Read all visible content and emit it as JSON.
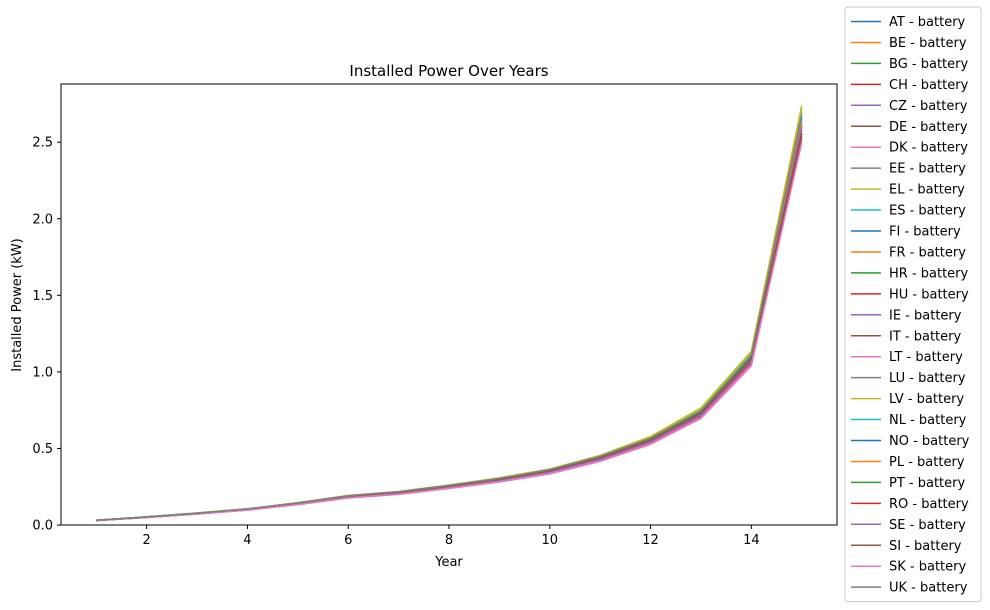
{
  "chart_data": {
    "type": "line",
    "title": "Installed Power Over Years",
    "xlabel": "Year",
    "ylabel": "Installed Power (kW)",
    "xlim": [
      0.3,
      15.7
    ],
    "ylim": [
      0,
      2.88
    ],
    "x_ticks": [
      2,
      4,
      6,
      8,
      10,
      12,
      14
    ],
    "y_ticks": [
      0.0,
      0.5,
      1.0,
      1.5,
      2.0,
      2.5
    ],
    "x_tick_labels": [
      "2",
      "4",
      "6",
      "8",
      "10",
      "12",
      "14"
    ],
    "y_tick_labels": [
      "0.0",
      "0.5",
      "1.0",
      "1.5",
      "2.0",
      "2.5"
    ],
    "grid": false,
    "legend_position": "right",
    "x": [
      1,
      2,
      3,
      4,
      5,
      6,
      7,
      8,
      9,
      10,
      11,
      12,
      13,
      14,
      15
    ],
    "series": [
      {
        "name": "AT - battery",
        "color": "#1f77b4",
        "values": [
          0.03,
          0.052,
          0.075,
          0.102,
          0.14,
          0.185,
          0.21,
          0.25,
          0.295,
          0.35,
          0.435,
          0.55,
          0.725,
          1.08,
          2.64
        ]
      },
      {
        "name": "BE - battery",
        "color": "#ff7f0e",
        "values": [
          0.03,
          0.051,
          0.074,
          0.1,
          0.138,
          0.182,
          0.207,
          0.247,
          0.291,
          0.346,
          0.43,
          0.545,
          0.718,
          1.072,
          2.6
        ]
      },
      {
        "name": "BG - battery",
        "color": "#2ca02c",
        "values": [
          0.03,
          0.052,
          0.076,
          0.103,
          0.142,
          0.188,
          0.213,
          0.254,
          0.299,
          0.355,
          0.44,
          0.556,
          0.732,
          1.09,
          2.52
        ]
      },
      {
        "name": "CH - battery",
        "color": "#d62728",
        "values": [
          0.029,
          0.05,
          0.073,
          0.099,
          0.136,
          0.18,
          0.204,
          0.244,
          0.288,
          0.342,
          0.425,
          0.538,
          0.71,
          1.06,
          2.56
        ]
      },
      {
        "name": "CZ - battery",
        "color": "#9467bd",
        "values": [
          0.03,
          0.051,
          0.075,
          0.101,
          0.139,
          0.184,
          0.209,
          0.249,
          0.293,
          0.348,
          0.432,
          0.548,
          0.722,
          1.076,
          2.62
        ]
      },
      {
        "name": "DE - battery",
        "color": "#8c564b",
        "values": [
          0.03,
          0.052,
          0.076,
          0.103,
          0.141,
          0.187,
          0.212,
          0.252,
          0.297,
          0.352,
          0.437,
          0.553,
          0.728,
          1.084,
          2.58
        ]
      },
      {
        "name": "DK - battery",
        "color": "#e377c2",
        "values": [
          0.029,
          0.05,
          0.072,
          0.098,
          0.134,
          0.177,
          0.201,
          0.24,
          0.283,
          0.337,
          0.419,
          0.531,
          0.701,
          1.048,
          2.5
        ]
      },
      {
        "name": "EE - battery",
        "color": "#7f7f7f",
        "values": [
          0.031,
          0.053,
          0.077,
          0.105,
          0.144,
          0.191,
          0.216,
          0.258,
          0.304,
          0.36,
          0.446,
          0.564,
          0.742,
          1.102,
          2.66
        ]
      },
      {
        "name": "EL - battery",
        "color": "#bcbd22",
        "values": [
          0.031,
          0.054,
          0.078,
          0.106,
          0.146,
          0.193,
          0.219,
          0.261,
          0.308,
          0.366,
          0.455,
          0.578,
          0.765,
          1.135,
          2.74
        ]
      },
      {
        "name": "ES - battery",
        "color": "#17becf",
        "values": [
          0.031,
          0.053,
          0.078,
          0.105,
          0.145,
          0.192,
          0.218,
          0.26,
          0.306,
          0.363,
          0.451,
          0.572,
          0.757,
          1.122,
          2.7
        ]
      },
      {
        "name": "FI - battery",
        "color": "#1f77b4",
        "values": [
          0.03,
          0.052,
          0.076,
          0.103,
          0.141,
          0.187,
          0.212,
          0.253,
          0.298,
          0.353,
          0.438,
          0.554,
          0.73,
          1.088,
          2.62
        ]
      },
      {
        "name": "FR - battery",
        "color": "#ff7f0e",
        "values": [
          0.03,
          0.051,
          0.074,
          0.101,
          0.139,
          0.183,
          0.208,
          0.248,
          0.292,
          0.347,
          0.431,
          0.546,
          0.72,
          1.074,
          2.58
        ]
      },
      {
        "name": "HR - battery",
        "color": "#2ca02c",
        "values": [
          0.031,
          0.053,
          0.077,
          0.104,
          0.143,
          0.19,
          0.215,
          0.256,
          0.302,
          0.358,
          0.444,
          0.561,
          0.738,
          1.096,
          2.54
        ]
      },
      {
        "name": "HU - battery",
        "color": "#d62728",
        "values": [
          0.029,
          0.05,
          0.073,
          0.099,
          0.136,
          0.18,
          0.204,
          0.243,
          0.287,
          0.341,
          0.424,
          0.537,
          0.708,
          1.058,
          2.56
        ]
      },
      {
        "name": "IE - battery",
        "color": "#9467bd",
        "values": [
          0.03,
          0.051,
          0.075,
          0.102,
          0.14,
          0.185,
          0.21,
          0.25,
          0.295,
          0.35,
          0.434,
          0.55,
          0.724,
          1.08,
          2.64
        ]
      },
      {
        "name": "IT - battery",
        "color": "#8c564b",
        "values": [
          0.03,
          0.052,
          0.076,
          0.103,
          0.142,
          0.188,
          0.213,
          0.254,
          0.299,
          0.355,
          0.44,
          0.556,
          0.733,
          1.09,
          2.6
        ]
      },
      {
        "name": "LT - battery",
        "color": "#e377c2",
        "values": [
          0.029,
          0.049,
          0.072,
          0.097,
          0.133,
          0.176,
          0.2,
          0.238,
          0.281,
          0.334,
          0.415,
          0.527,
          0.696,
          1.04,
          2.52
        ]
      },
      {
        "name": "LU - battery",
        "color": "#7f7f7f",
        "values": [
          0.031,
          0.053,
          0.077,
          0.104,
          0.144,
          0.19,
          0.216,
          0.257,
          0.303,
          0.36,
          0.446,
          0.564,
          0.742,
          1.104,
          2.68
        ]
      },
      {
        "name": "LV - battery",
        "color": "#bcbd22",
        "values": [
          0.031,
          0.053,
          0.078,
          0.105,
          0.145,
          0.192,
          0.218,
          0.26,
          0.307,
          0.364,
          0.452,
          0.574,
          0.76,
          1.128,
          2.72
        ]
      },
      {
        "name": "NL - battery",
        "color": "#17becf",
        "values": [
          0.03,
          0.052,
          0.076,
          0.103,
          0.142,
          0.188,
          0.213,
          0.254,
          0.3,
          0.356,
          0.442,
          0.559,
          0.737,
          1.096,
          2.66
        ]
      },
      {
        "name": "NO - battery",
        "color": "#1f77b4",
        "values": [
          0.03,
          0.051,
          0.075,
          0.101,
          0.139,
          0.184,
          0.209,
          0.249,
          0.294,
          0.349,
          0.433,
          0.549,
          0.723,
          1.078,
          2.6
        ]
      },
      {
        "name": "PL - battery",
        "color": "#ff7f0e",
        "values": [
          0.03,
          0.052,
          0.075,
          0.102,
          0.14,
          0.186,
          0.211,
          0.251,
          0.296,
          0.351,
          0.436,
          0.552,
          0.727,
          1.082,
          2.62
        ]
      },
      {
        "name": "PT - battery",
        "color": "#2ca02c",
        "values": [
          0.031,
          0.053,
          0.077,
          0.104,
          0.143,
          0.189,
          0.214,
          0.255,
          0.301,
          0.357,
          0.443,
          0.56,
          0.738,
          1.098,
          2.56
        ]
      },
      {
        "name": "RO - battery",
        "color": "#d62728",
        "values": [
          0.029,
          0.05,
          0.073,
          0.099,
          0.136,
          0.18,
          0.205,
          0.244,
          0.288,
          0.342,
          0.425,
          0.539,
          0.711,
          1.062,
          2.54
        ]
      },
      {
        "name": "SE - battery",
        "color": "#9467bd",
        "values": [
          0.03,
          0.051,
          0.074,
          0.1,
          0.138,
          0.182,
          0.207,
          0.247,
          0.291,
          0.346,
          0.43,
          0.545,
          0.718,
          1.072,
          2.6
        ]
      },
      {
        "name": "SI - battery",
        "color": "#8c564b",
        "values": [
          0.03,
          0.052,
          0.076,
          0.103,
          0.141,
          0.187,
          0.212,
          0.252,
          0.297,
          0.353,
          0.438,
          0.554,
          0.73,
          1.086,
          2.56
        ]
      },
      {
        "name": "SK - battery",
        "color": "#e377c2",
        "values": [
          0.029,
          0.05,
          0.072,
          0.098,
          0.134,
          0.178,
          0.202,
          0.241,
          0.284,
          0.338,
          0.42,
          0.533,
          0.703,
          1.05,
          2.5
        ]
      },
      {
        "name": "UK - battery",
        "color": "#7f7f7f",
        "values": [
          0.031,
          0.053,
          0.077,
          0.105,
          0.144,
          0.191,
          0.217,
          0.258,
          0.304,
          0.361,
          0.448,
          0.567,
          0.746,
          1.108,
          2.68
        ]
      }
    ]
  }
}
